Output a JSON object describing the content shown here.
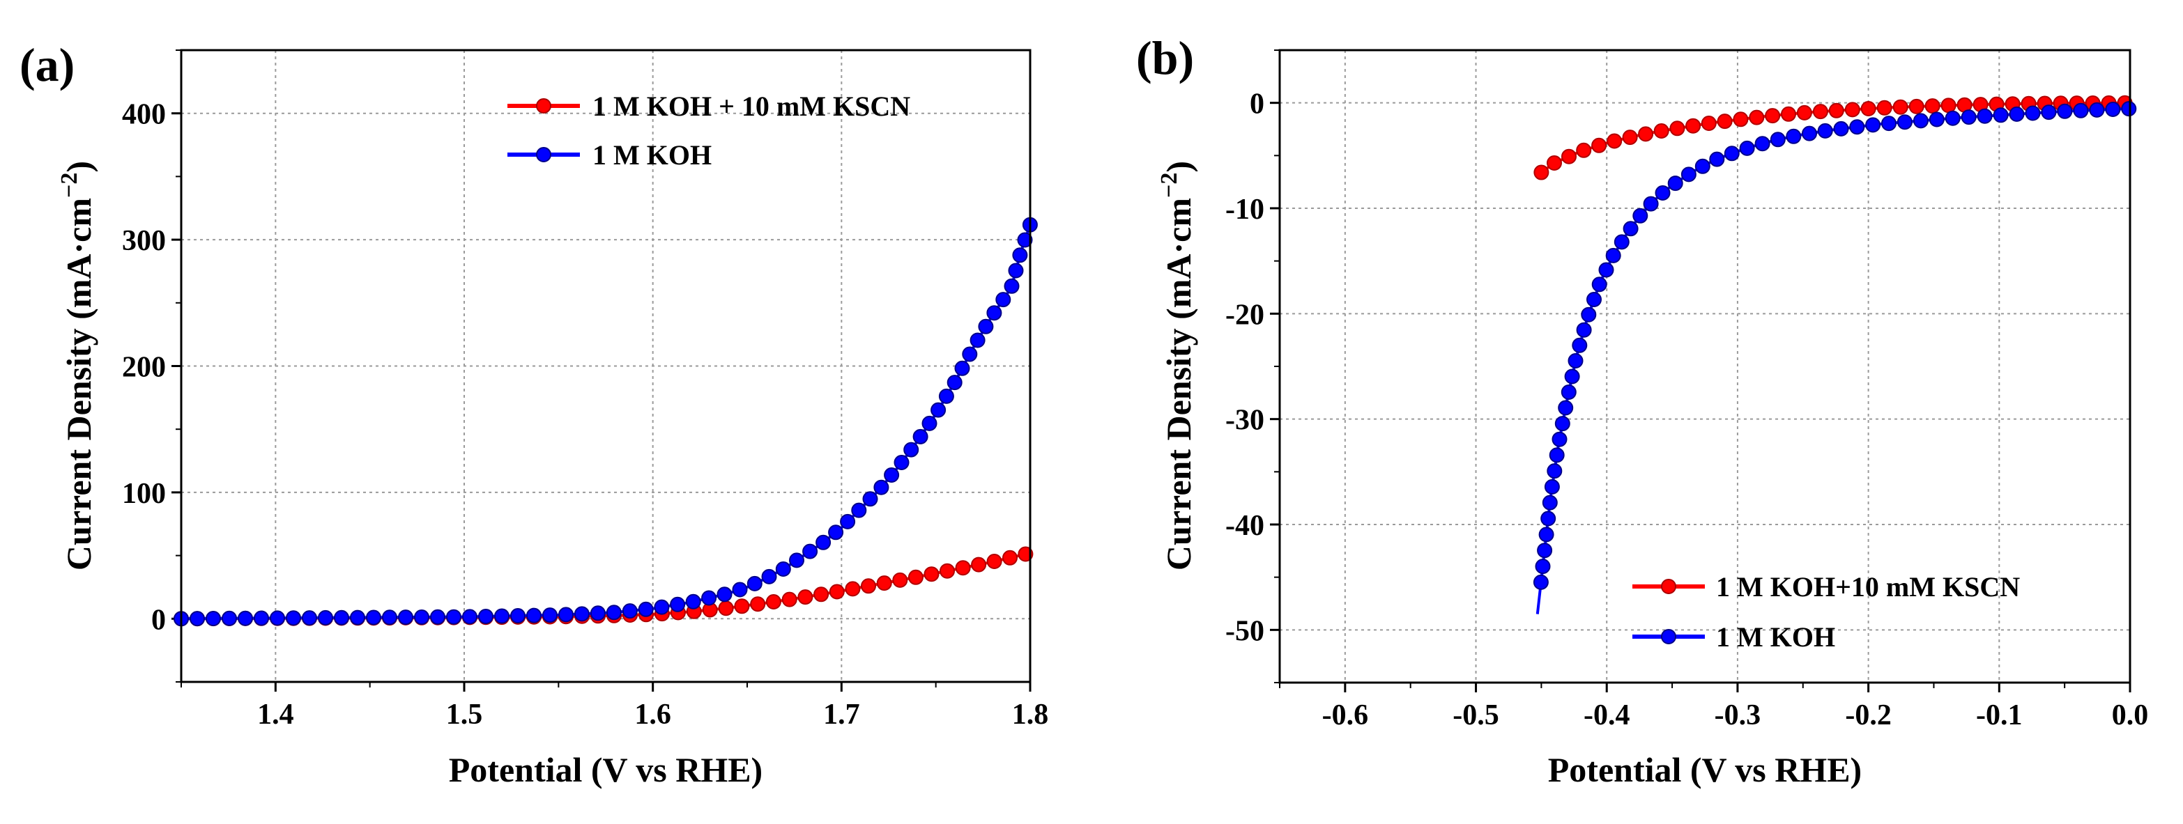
{
  "chart_data": [
    {
      "panel_label": "(a)",
      "type": "line",
      "xlabel": "Potential (V vs RHE)",
      "ylabel_main": "Current Density (mA·cm",
      "ylabel_exp": "−2",
      "ylabel_close": ")",
      "xlim": [
        1.35,
        1.8
      ],
      "ylim": [
        -50,
        450
      ],
      "xticks": [
        1.4,
        1.5,
        1.6,
        1.7,
        1.8
      ],
      "xtick_labels": [
        "1.4",
        "1.5",
        "1.6",
        "1.7",
        "1.8"
      ],
      "yticks": [
        0,
        100,
        200,
        300,
        400
      ],
      "ytick_labels": [
        "0",
        "100",
        "200",
        "300",
        "400"
      ],
      "grid": true,
      "legend_position": "top-right",
      "series": [
        {
          "name": "1 M KOH + 10 mM KSCN",
          "color": "#ff0000",
          "x": [
            1.35,
            1.4,
            1.45,
            1.5,
            1.55,
            1.58,
            1.6,
            1.62,
            1.64,
            1.66,
            1.68,
            1.7,
            1.72,
            1.74,
            1.76,
            1.78,
            1.8
          ],
          "y": [
            0,
            0.3,
            0.6,
            1,
            1.6,
            2.5,
            3.5,
            5.5,
            8.5,
            12.5,
            17,
            22,
            27.5,
            33,
            39,
            45,
            52
          ]
        },
        {
          "name": "1 M KOH",
          "color": "#0000ff",
          "x": [
            1.35,
            1.4,
            1.45,
            1.5,
            1.55,
            1.58,
            1.6,
            1.62,
            1.64,
            1.65,
            1.66,
            1.67,
            1.68,
            1.69,
            1.7,
            1.71,
            1.72,
            1.73,
            1.74,
            1.75,
            1.76,
            1.77,
            1.78,
            1.79,
            1.795,
            1.8
          ],
          "y": [
            0,
            0.5,
            1,
            1.5,
            3,
            5,
            8,
            13,
            20,
            25,
            32,
            40,
            50,
            60,
            72,
            87,
            102,
            120,
            140,
            162,
            187,
            215,
            240,
            262,
            290,
            312
          ]
        }
      ]
    },
    {
      "panel_label": "(b)",
      "type": "line",
      "xlabel": "Potential (V vs RHE)",
      "ylabel_main": "Current Density (mA·cm",
      "ylabel_exp": "−2",
      "ylabel_close": ")",
      "xlim": [
        -0.65,
        0.0
      ],
      "ylim": [
        -55,
        5
      ],
      "xticks": [
        -0.6,
        -0.5,
        -0.4,
        -0.3,
        -0.2,
        -0.1,
        0.0
      ],
      "xtick_labels": [
        "-0.6",
        "-0.5",
        "-0.4",
        "-0.3",
        "-0.2",
        "-0.1",
        "0.0"
      ],
      "yticks": [
        0,
        -10,
        -20,
        -30,
        -40,
        -50
      ],
      "ytick_labels": [
        "0",
        "-10",
        "-20",
        "-30",
        "-40",
        "-50"
      ],
      "grid": true,
      "legend_position": "bottom-right",
      "series": [
        {
          "name": "1 M KOH+10 mM KSCN",
          "color": "#ff0000",
          "x": [
            -0.45,
            -0.44,
            -0.42,
            -0.4,
            -0.38,
            -0.36,
            -0.34,
            -0.32,
            -0.3,
            -0.28,
            -0.26,
            -0.24,
            -0.22,
            -0.2,
            -0.18,
            -0.16,
            -0.14,
            -0.12,
            -0.1,
            -0.08,
            -0.06,
            -0.04,
            -0.02,
            0.0
          ],
          "y": [
            -6.6,
            -5.7,
            -4.6,
            -3.8,
            -3.2,
            -2.7,
            -2.3,
            -1.9,
            -1.6,
            -1.3,
            -1.05,
            -0.85,
            -0.7,
            -0.55,
            -0.42,
            -0.33,
            -0.25,
            -0.18,
            -0.12,
            -0.08,
            -0.05,
            -0.03,
            -0.02,
            0.0
          ]
        },
        {
          "name": "1 M KOH",
          "color": "#0000ff",
          "x": [
            -0.453,
            -0.448,
            -0.443,
            -0.437,
            -0.43,
            -0.423,
            -0.415,
            -0.405,
            -0.395,
            -0.385,
            -0.375,
            -0.365,
            -0.355,
            -0.345,
            -0.335,
            -0.325,
            -0.315,
            -0.3,
            -0.285,
            -0.27,
            -0.25,
            -0.23,
            -0.21,
            -0.19,
            -0.17,
            -0.15,
            -0.13,
            -0.11,
            -0.09,
            -0.07,
            -0.05,
            -0.03,
            -0.01,
            0.0
          ],
          "y": [
            -48.5,
            -43,
            -37.5,
            -32.5,
            -28,
            -24,
            -20.5,
            -17,
            -14.5,
            -12.5,
            -10.8,
            -9.4,
            -8.3,
            -7.4,
            -6.6,
            -5.9,
            -5.3,
            -4.6,
            -4.0,
            -3.5,
            -3.0,
            -2.6,
            -2.3,
            -2.0,
            -1.8,
            -1.6,
            -1.4,
            -1.25,
            -1.1,
            -0.95,
            -0.8,
            -0.7,
            -0.6,
            -0.55
          ]
        }
      ]
    }
  ]
}
